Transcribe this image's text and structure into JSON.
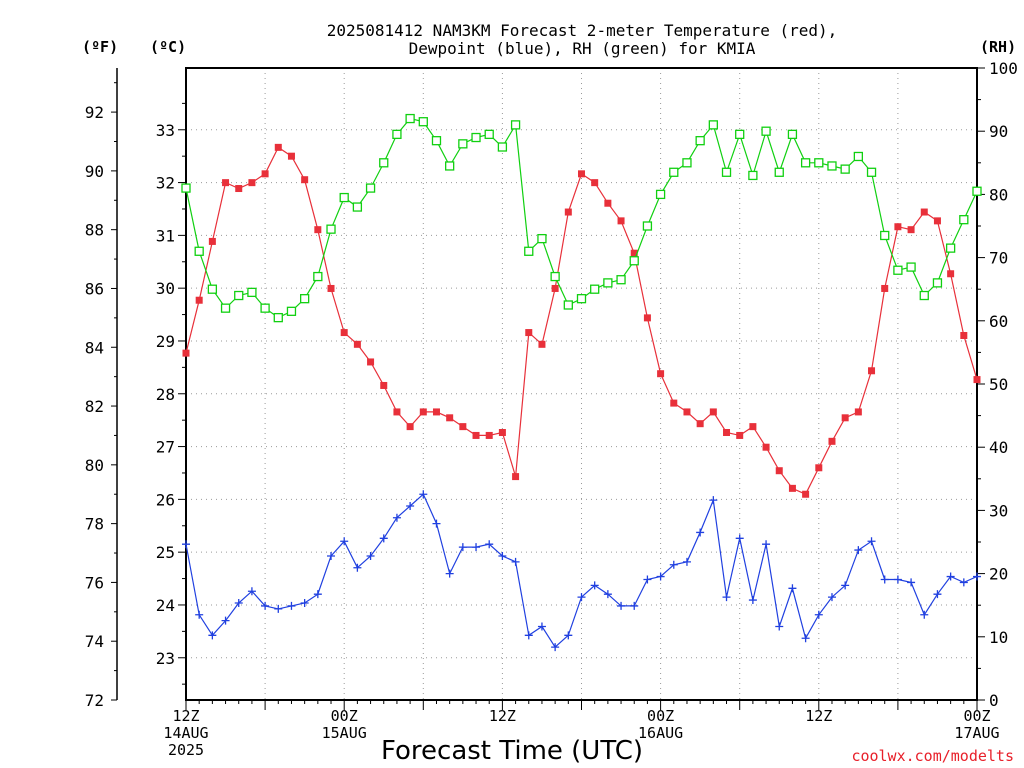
{
  "chart_data": {
    "type": "line",
    "title": "2025081412 NAM3KM Forecast 2-meter Temperature (red),",
    "subtitle": "Dewpoint (blue), RH (green) for KMIA",
    "xlabel": "Forecast Time (UTC)",
    "credit": "coolwx.com/modelts",
    "units": {
      "left_outer": "(ºF)",
      "left_inner": "(ºC)",
      "right": "(RH)"
    },
    "x_hours": [
      0,
      1,
      2,
      3,
      4,
      5,
      6,
      7,
      8,
      9,
      10,
      11,
      12,
      13,
      14,
      15,
      16,
      17,
      18,
      19,
      20,
      21,
      22,
      23,
      24,
      25,
      26,
      27,
      28,
      29,
      30,
      31,
      32,
      33,
      34,
      35,
      36,
      37,
      38,
      39,
      40,
      41,
      42,
      43,
      44,
      45,
      46,
      47,
      48,
      49,
      50,
      51,
      52,
      53,
      54,
      55,
      56,
      57,
      58,
      59,
      60
    ],
    "x_ticks": [
      {
        "h": 0,
        "lines": [
          "12Z",
          "14AUG",
          "2025"
        ]
      },
      {
        "h": 12,
        "lines": [
          "00Z",
          "15AUG"
        ]
      },
      {
        "h": 24,
        "lines": [
          "12Z"
        ]
      },
      {
        "h": 36,
        "lines": [
          "00Z",
          "16AUG"
        ]
      },
      {
        "h": 48,
        "lines": [
          "12Z"
        ]
      },
      {
        "h": 60,
        "lines": [
          "00Z",
          "17AUG"
        ]
      }
    ],
    "xlim": [
      0,
      60
    ],
    "ylim_f": [
      72,
      93.5
    ],
    "ylim_c": [
      22.2,
      34.17
    ],
    "ylim_rh": [
      0,
      100
    ],
    "yticks_f": [
      72,
      74,
      76,
      78,
      80,
      82,
      84,
      86,
      88,
      90,
      92
    ],
    "yticks_c": [
      23,
      24,
      25,
      26,
      27,
      28,
      29,
      30,
      31,
      32,
      33
    ],
    "yticks_rh": [
      0,
      10,
      20,
      30,
      40,
      50,
      60,
      70,
      80,
      90,
      100
    ],
    "grid": true,
    "series": [
      {
        "name": "Temperature",
        "color": "#e8303a",
        "marker": "filled-square",
        "units": "F",
        "values": [
          83.8,
          85.6,
          87.6,
          89.6,
          89.4,
          89.6,
          89.9,
          90.8,
          90.5,
          89.7,
          88.0,
          86.0,
          84.5,
          84.1,
          83.5,
          82.7,
          81.8,
          81.3,
          81.8,
          81.8,
          81.6,
          81.3,
          81.0,
          81.0,
          81.1,
          79.6,
          84.5,
          84.1,
          86.0,
          88.6,
          89.9,
          89.6,
          88.9,
          88.3,
          87.2,
          85.0,
          83.1,
          82.1,
          81.8,
          81.4,
          81.8,
          81.1,
          81.0,
          81.3,
          80.6,
          79.8,
          79.2,
          79.0,
          79.9,
          80.8,
          81.6,
          81.8,
          83.2,
          86.0,
          88.1,
          88.0,
          88.6,
          88.3,
          86.5,
          84.4,
          82.9
        ]
      },
      {
        "name": "Dewpoint",
        "color": "#2040e0",
        "marker": "plus",
        "units": "F",
        "values": [
          77.3,
          74.9,
          74.2,
          74.7,
          75.3,
          75.7,
          75.2,
          75.1,
          75.2,
          75.3,
          75.6,
          76.9,
          77.4,
          76.5,
          76.9,
          77.5,
          78.2,
          78.6,
          79.0,
          78.0,
          76.3,
          77.2,
          77.2,
          77.3,
          76.9,
          76.7,
          74.2,
          74.5,
          73.8,
          74.2,
          75.5,
          75.9,
          75.6,
          75.2,
          75.2,
          76.1,
          76.2,
          76.6,
          76.7,
          77.7,
          78.8,
          75.5,
          77.5,
          75.4,
          77.3,
          74.5,
          75.8,
          74.1,
          74.9,
          75.5,
          75.9,
          77.1,
          77.4,
          76.1,
          76.1,
          76.0,
          74.9,
          75.6,
          76.2,
          76.0,
          76.2
        ]
      },
      {
        "name": "RH",
        "color": "#10d010",
        "marker": "open-square",
        "units": "%",
        "values": [
          81,
          71,
          65,
          62,
          64,
          64.5,
          62,
          60.5,
          61.5,
          63.5,
          67,
          74.5,
          79.5,
          78,
          81,
          85,
          89.5,
          92,
          91.5,
          88.5,
          84.5,
          88,
          89,
          89.5,
          87.5,
          91,
          71,
          73,
          67,
          62.5,
          63.5,
          65,
          66,
          66.5,
          69.5,
          75,
          80,
          83.5,
          85,
          88.5,
          91,
          83.5,
          89.5,
          83,
          90,
          83.5,
          89.5,
          85,
          85,
          84.5,
          84,
          86,
          83.5,
          73.5,
          68,
          68.5,
          64,
          66,
          71.5,
          76,
          80.5
        ]
      }
    ]
  }
}
